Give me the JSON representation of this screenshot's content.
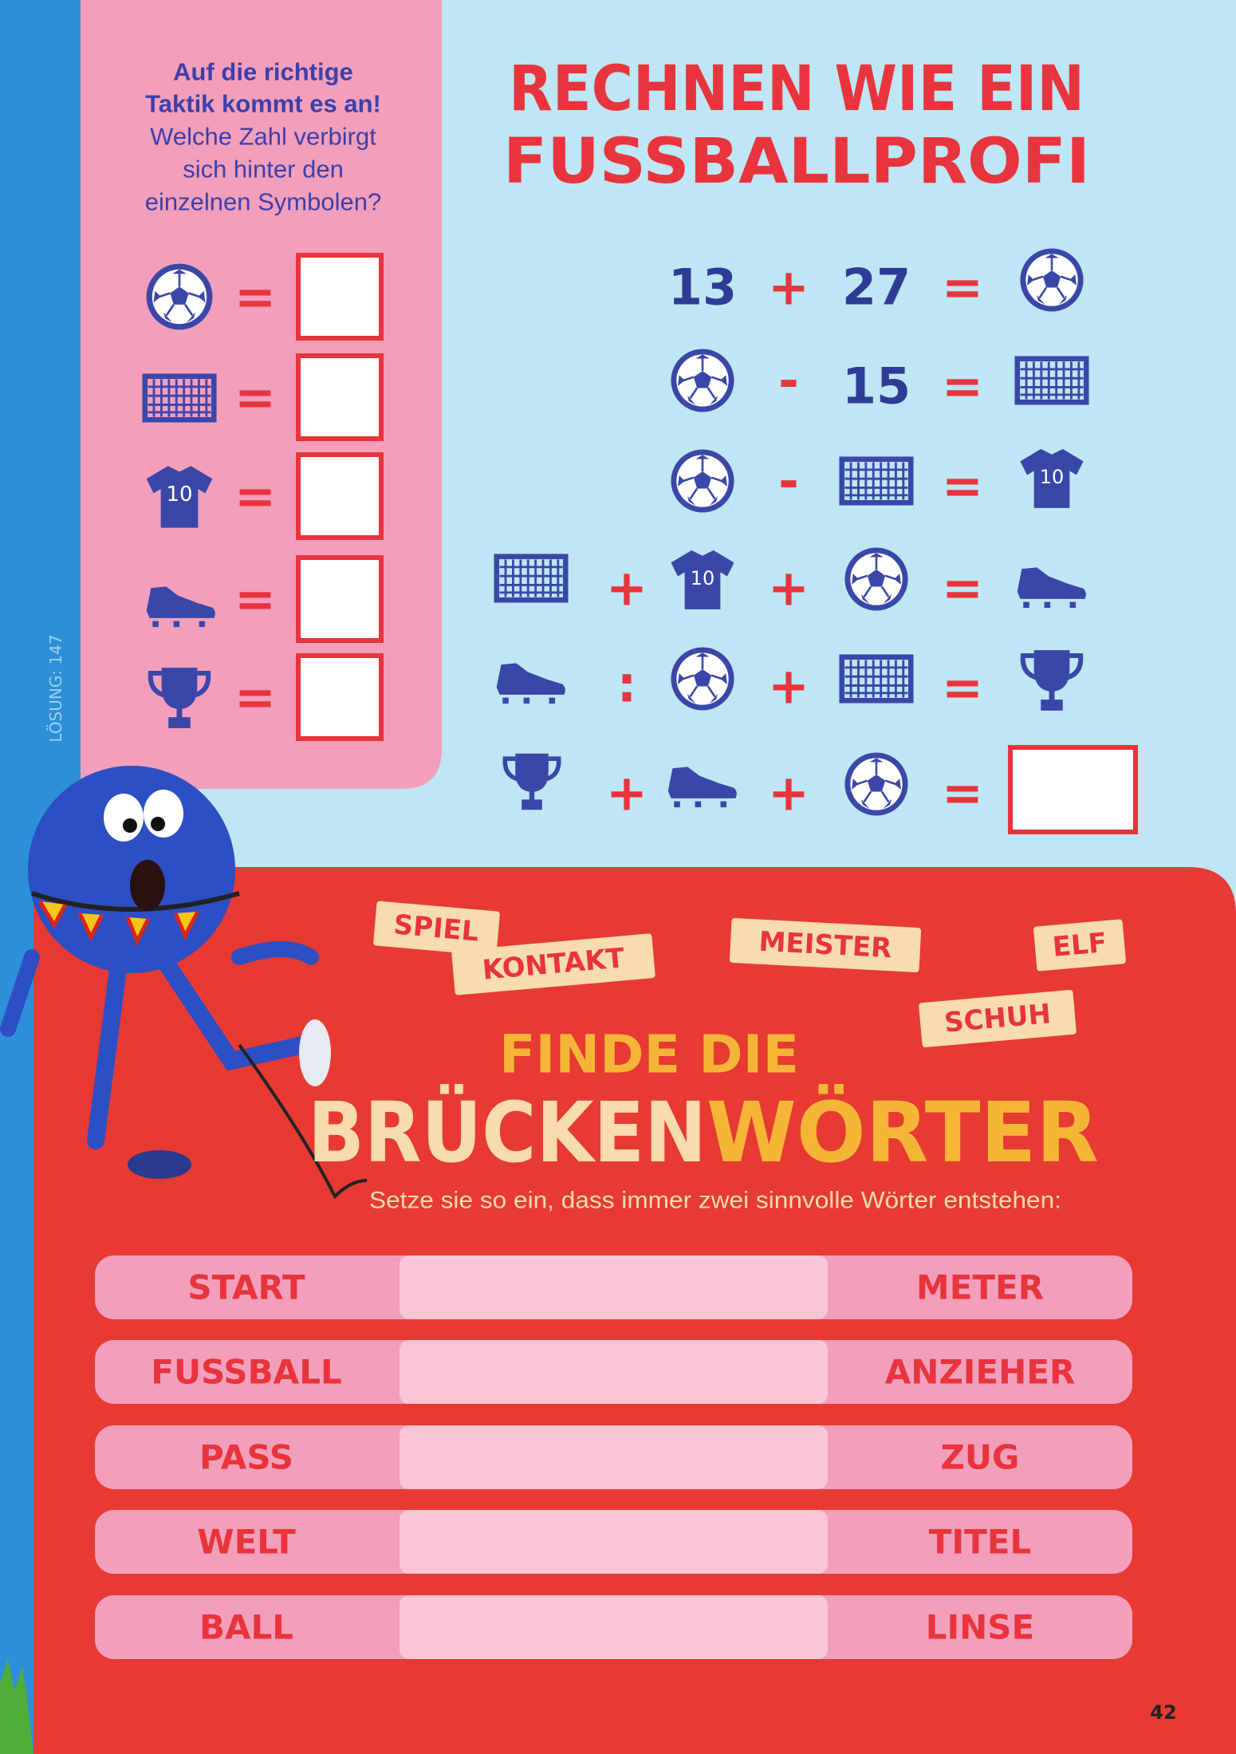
{
  "side_label": "LÖSUNG: 147",
  "intro_bold": [
    "Auf die richtige",
    "Taktik kommt es an!"
  ],
  "intro_text": [
    "Welche Zahl verbirgt",
    "sich hinter den",
    "einzelnen Symbolen?"
  ],
  "title": [
    "RECHNEN WIE EIN",
    "FUSSBALLPROFI"
  ],
  "signs": {
    "plus": "+",
    "minus": "-",
    "divide": ":",
    "equals": "="
  },
  "numbers": [
    "13",
    "27",
    "15"
  ],
  "shirt_number": "10",
  "words": [
    "SPIEL",
    "KONTAKT",
    "MEISTER",
    "ELF",
    "SCHUH"
  ],
  "bridge_title": {
    "line1": "FINDE DIE",
    "line2a": "BRÜCKEN",
    "line2b": "WÖRTER"
  },
  "instruction": "Setze sie so ein, dass immer zwei sinnvolle Wörter entstehen:",
  "rows": [
    [
      "START",
      "METER"
    ],
    [
      "FUSSBALL",
      "ANZIEHER"
    ],
    [
      "PASS",
      "ZUG"
    ],
    [
      "WELT",
      "TITEL"
    ],
    [
      "BALL",
      "LINSE"
    ]
  ],
  "page_number": "42"
}
